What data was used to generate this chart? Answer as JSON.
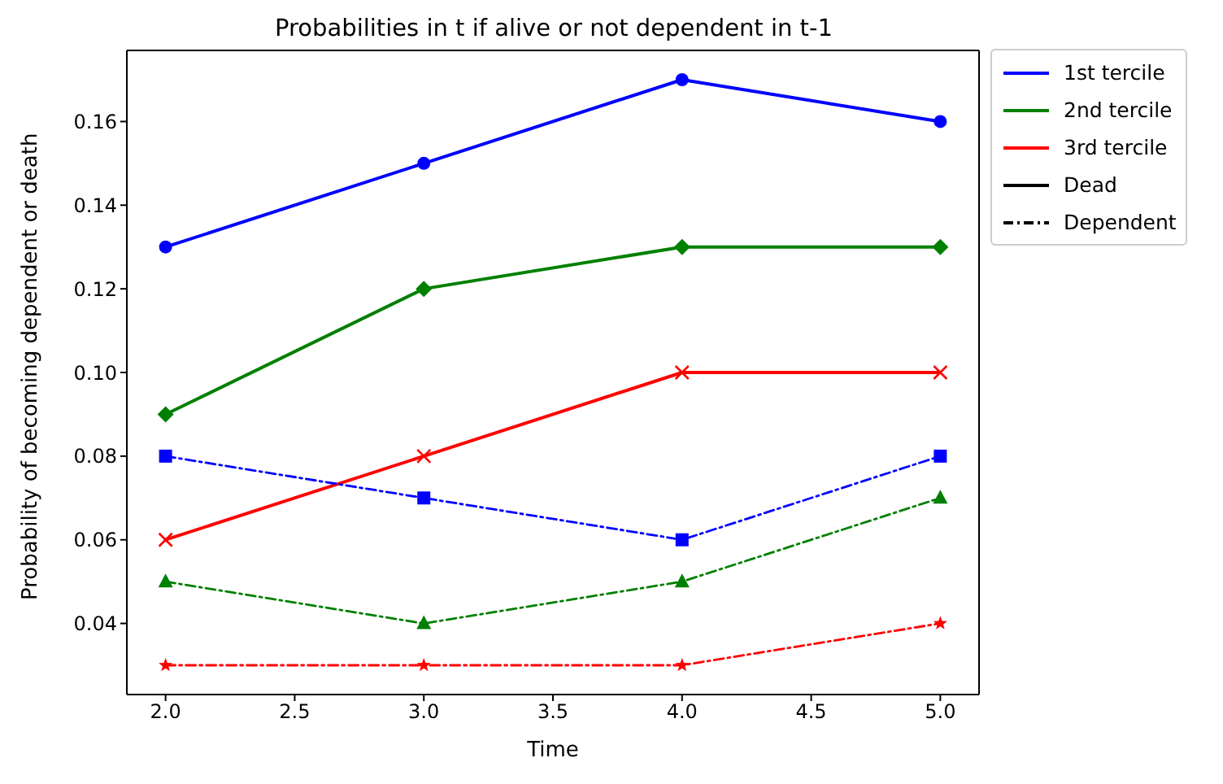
{
  "chart_data": {
    "type": "line",
    "title": "Probabilities in t if alive or not dependent in t-1",
    "xlabel": "Time",
    "ylabel": "Probability of becoming dependent or death",
    "x": [
      2,
      3,
      4,
      5
    ],
    "series": [
      {
        "color": "#0000ff",
        "values": [
          0.13,
          0.15,
          0.17,
          0.16
        ],
        "marker": "circle",
        "line_style": "solid"
      },
      {
        "color": "#008000",
        "values": [
          0.09,
          0.12,
          0.13,
          0.13
        ],
        "marker": "diamond",
        "line_style": "solid"
      },
      {
        "color": "#ff0000",
        "values": [
          0.06,
          0.08,
          0.1,
          0.1
        ],
        "marker": "cross",
        "line_style": "solid"
      },
      {
        "color": "#0000ff",
        "values": [
          0.08,
          0.07,
          0.06,
          0.08
        ],
        "marker": "square",
        "line_style": "dashdot"
      },
      {
        "color": "#008000",
        "values": [
          0.05,
          0.04,
          0.05,
          0.07
        ],
        "marker": "triangle",
        "line_style": "dashdot"
      },
      {
        "color": "#ff0000",
        "values": [
          0.03,
          0.03,
          0.03,
          0.04
        ],
        "marker": "star",
        "line_style": "dashdot"
      },
      {
        "name": "1st tercile",
        "color": "#0000ff",
        "values": [
          null,
          null,
          null,
          null
        ],
        "marker": "none",
        "line_style": "solid"
      },
      {
        "name": "2nd tercile",
        "color": "#008000",
        "values": [
          null,
          null,
          null,
          null
        ],
        "marker": "none",
        "line_style": "solid"
      },
      {
        "name": "3rd tercile",
        "color": "#ff0000",
        "values": [
          null,
          null,
          null,
          null
        ],
        "marker": "none",
        "line_style": "solid"
      },
      {
        "name": "Dead",
        "color": "#000000",
        "values": [
          null,
          null,
          null,
          null
        ],
        "marker": "none",
        "line_style": "solid"
      },
      {
        "name": "Dependent",
        "color": "#000000",
        "values": [
          null,
          null,
          null,
          null
        ],
        "marker": "none",
        "line_style": "dashdot"
      }
    ],
    "xlim": [
      1.85,
      5.15
    ],
    "xticks": [
      {
        "value": 2,
        "label": "2.0"
      },
      {
        "value": 2.5,
        "label": "2.5"
      },
      {
        "value": 3,
        "label": "3.0"
      },
      {
        "value": 3.5,
        "label": "3.5"
      },
      {
        "value": 4,
        "label": "4.0"
      },
      {
        "value": 4.5,
        "label": "4.5"
      },
      {
        "value": 5,
        "label": "5.0"
      }
    ],
    "ylim": [
      0.023,
      0.177
    ],
    "yticks": [
      {
        "value": 0.04,
        "label": "0.04"
      },
      {
        "value": 0.06,
        "label": "0.06"
      },
      {
        "value": 0.08,
        "label": "0.08"
      },
      {
        "value": 0.1,
        "label": "0.10"
      },
      {
        "value": 0.12,
        "label": "0.12"
      },
      {
        "value": 0.14,
        "label": "0.14"
      },
      {
        "value": 0.16,
        "label": "0.16"
      }
    ],
    "grid": false,
    "legend": "right"
  }
}
